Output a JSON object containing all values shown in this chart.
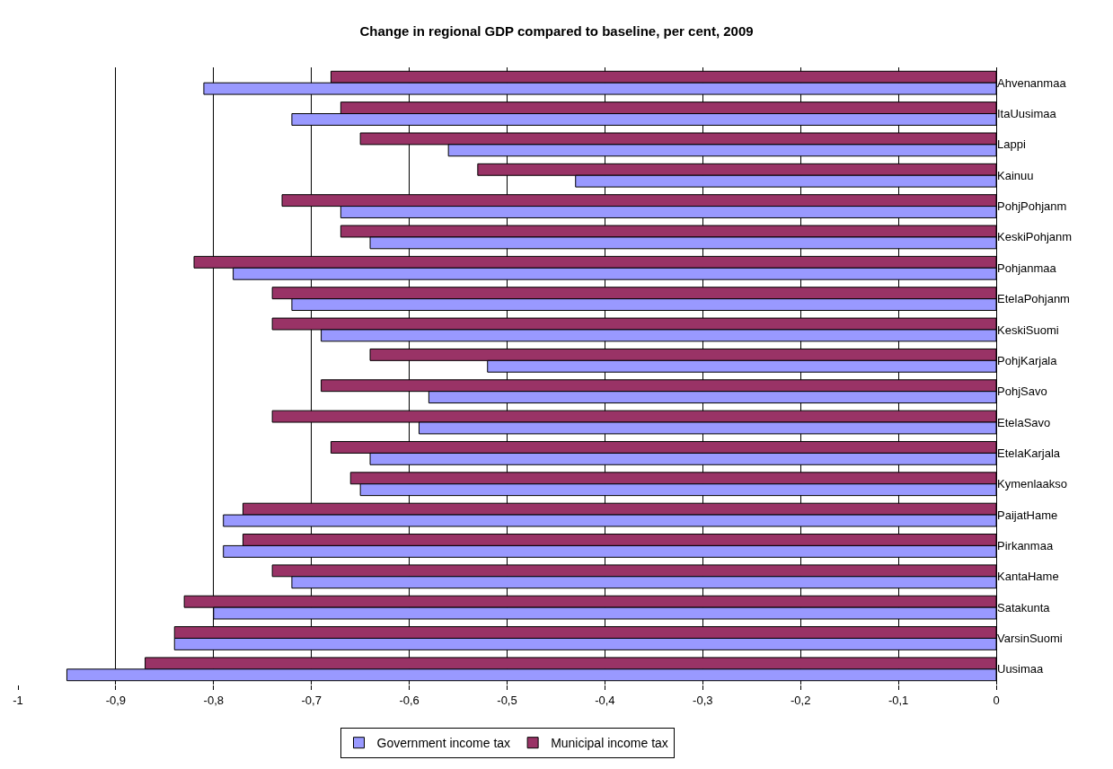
{
  "chart_data": {
    "type": "bar",
    "orientation": "horizontal",
    "title": "Change in regional GDP compared to baseline, per cent, 2009",
    "categories": [
      "Ahvenanmaa",
      "ItaUusimaa",
      "Lappi",
      "Kainuu",
      "PohjPohjanm",
      "KeskiPohjanm",
      "Pohjanmaa",
      "EtelaPohjanm",
      "KeskiSuomi",
      "PohjKarjala",
      "PohjSavo",
      "EtelaSavo",
      "EtelaKarjala",
      "Kymenlaakso",
      "PaijatHame",
      "Pirkanmaa",
      "KantaHame",
      "Satakunta",
      "VarsinSuomi",
      "Uusimaa"
    ],
    "series": [
      {
        "name": "Government income tax",
        "color": "#9999ff",
        "values": [
          -0.81,
          -0.72,
          -0.56,
          -0.43,
          -0.67,
          -0.64,
          -0.78,
          -0.72,
          -0.69,
          -0.52,
          -0.58,
          -0.59,
          -0.64,
          -0.65,
          -0.79,
          -0.79,
          -0.72,
          -0.8,
          -0.84,
          -0.95
        ]
      },
      {
        "name": "Municipal income tax",
        "color": "#993366",
        "values": [
          -0.68,
          -0.67,
          -0.65,
          -0.53,
          -0.73,
          -0.67,
          -0.82,
          -0.74,
          -0.74,
          -0.64,
          -0.69,
          -0.74,
          -0.68,
          -0.66,
          -0.77,
          -0.77,
          -0.74,
          -0.83,
          -0.84,
          -0.87
        ]
      }
    ],
    "xlim": [
      -1,
      0
    ],
    "xticks": [
      -1,
      {
        "value": -0.9,
        "label": "-0,9"
      },
      {
        "value": -0.8,
        "label": "-0,8"
      },
      {
        "value": -0.7,
        "label": "-0,7"
      },
      {
        "value": -0.6,
        "label": "-0,6"
      },
      {
        "value": -0.5,
        "label": "-0,5"
      },
      {
        "value": -0.4,
        "label": "-0,4"
      },
      {
        "value": -0.3,
        "label": "-0,3"
      },
      {
        "value": -0.2,
        "label": "-0,2"
      },
      {
        "value": -0.1,
        "label": "-0,1"
      },
      0
    ],
    "grid": "x",
    "legend": "bottom"
  }
}
